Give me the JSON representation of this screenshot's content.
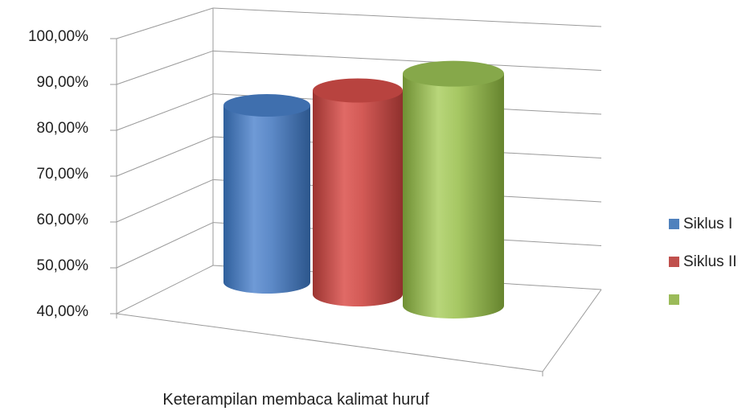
{
  "chart_data": {
    "type": "bar",
    "style": "3d-cylinder",
    "categories": [
      "Keterampilan membaca kalimat huruf"
    ],
    "series": [
      {
        "name": "Siklus I",
        "values": [
          0.8
        ],
        "color": "#4f81bd"
      },
      {
        "name": "Siklus II",
        "values": [
          0.85
        ],
        "color": "#c0504d"
      },
      {
        "name": "",
        "values": [
          0.9
        ],
        "color": "#9bbb59"
      }
    ],
    "ylim": [
      0.4,
      1.0
    ],
    "y_ticks": [
      "40,00%",
      "50,00%",
      "60,00%",
      "70,00%",
      "80,00%",
      "90,00%",
      "100,00%"
    ],
    "grid": true,
    "legend_position": "right"
  }
}
